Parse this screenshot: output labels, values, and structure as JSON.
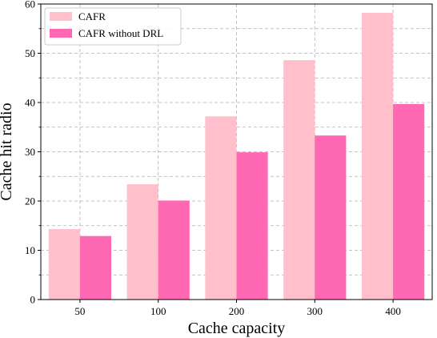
{
  "chart_data": {
    "type": "bar",
    "categories": [
      "50",
      "100",
      "200",
      "300",
      "400"
    ],
    "series": [
      {
        "name": "CAFR",
        "values": [
          14.3,
          23.4,
          37.2,
          48.6,
          58.2
        ],
        "color": "#ffc0cb"
      },
      {
        "name": "CAFR without DRL",
        "values": [
          12.9,
          20.1,
          29.9,
          33.3,
          39.7
        ],
        "color": "#ff69b4"
      }
    ],
    "xlabel": "Cache capacity",
    "ylabel": "Cache hit radio",
    "ylim": [
      0,
      60
    ],
    "yticks": [
      0,
      10,
      20,
      30,
      40,
      50,
      60
    ],
    "grid": "dashed",
    "legend_position": "top-left"
  }
}
